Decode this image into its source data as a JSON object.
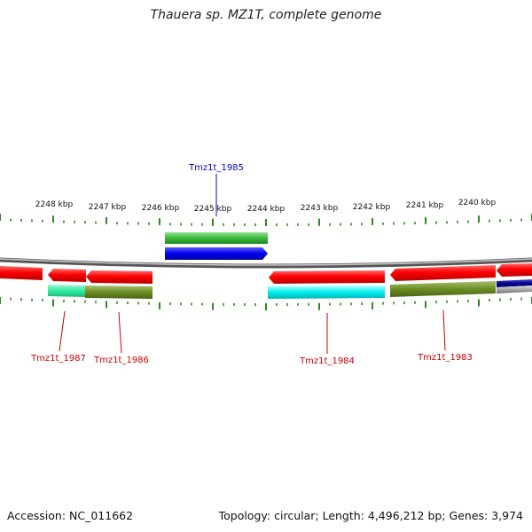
{
  "title": "Thauera sp. MZ1T, complete genome",
  "footer": {
    "accession": "Accession: NC_011662",
    "topology": "Topology: circular; Length: 4,496,212 bp; Genes: 3,974"
  },
  "ruler": {
    "labels": [
      "2248 kbp",
      "2247 kbp",
      "2246 kbp",
      "2245 kbp",
      "2244 kbp",
      "2243 kbp",
      "2242 kbp",
      "2241 kbp",
      "2240 kbp"
    ],
    "tick_color": "#2e8b1e"
  },
  "colors": {
    "cds": "#ff0000",
    "blast_green": "#3cb83c",
    "blue": "#0000ee",
    "cyan": "#00eeee",
    "olive": "#6b8e23",
    "mint": "#2eeaa0",
    "backbone": "#888888",
    "label_red": "#cc0000",
    "label_blue": "#0000cc"
  },
  "labels": {
    "tmz1985": "Tmz1t_1985",
    "tmz1987": "Tmz1t_1987",
    "tmz1986": "Tmz1t_1986",
    "tmz1984": "Tmz1t_1984",
    "tmz1983": "Tmz1t_1983"
  }
}
